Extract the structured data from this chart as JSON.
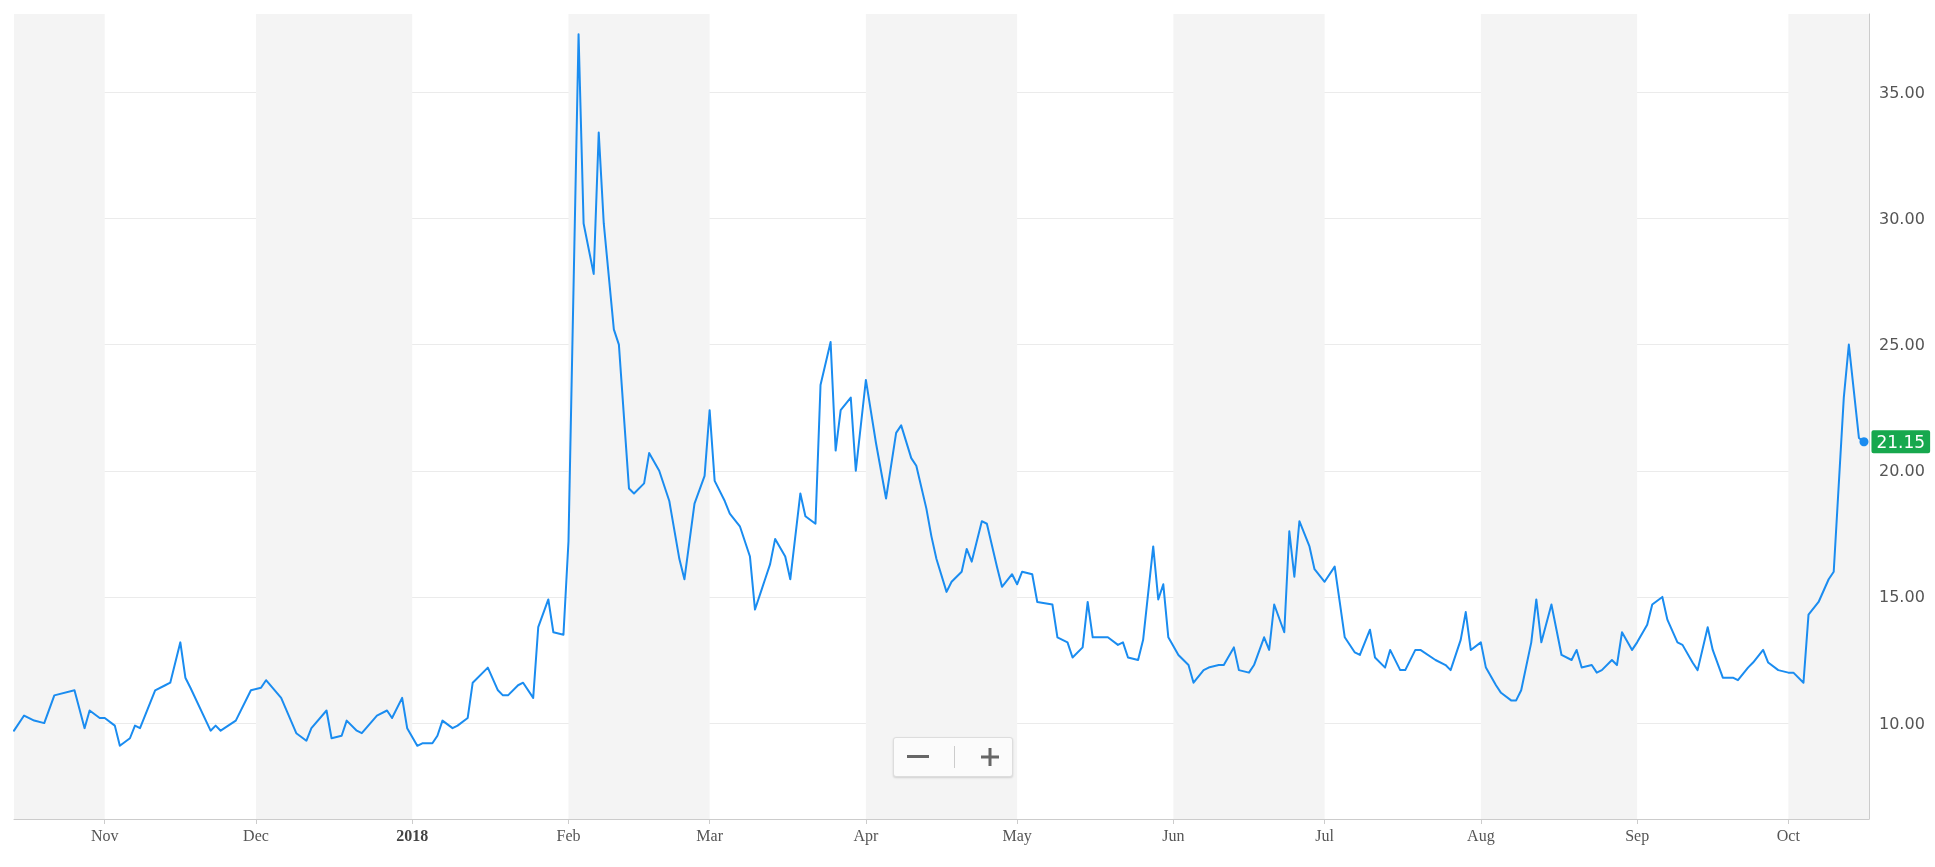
{
  "chart_data": {
    "type": "line",
    "x": [
      "2017-10-14",
      "2017-10-16",
      "2017-10-18",
      "2017-10-20",
      "2017-10-22",
      "2017-10-26",
      "2017-10-28",
      "2017-10-29",
      "2017-10-31",
      "2017-11-01",
      "2017-11-03",
      "2017-11-04",
      "2017-11-06",
      "2017-11-07",
      "2017-11-08",
      "2017-11-11",
      "2017-11-13",
      "2017-11-14",
      "2017-11-16",
      "2017-11-17",
      "2017-11-18",
      "2017-11-22",
      "2017-11-23",
      "2017-11-24",
      "2017-11-27",
      "2017-11-30",
      "2017-12-02",
      "2017-12-03",
      "2017-12-06",
      "2017-12-09",
      "2017-12-11",
      "2017-12-12",
      "2017-12-15",
      "2017-12-16",
      "2017-12-18",
      "2017-12-19",
      "2017-12-21",
      "2017-12-22",
      "2017-12-25",
      "2017-12-27",
      "2017-12-28",
      "2017-12-30",
      "2017-12-31",
      "2018-01-02",
      "2018-01-03",
      "2018-01-05",
      "2018-01-06",
      "2018-01-07",
      "2018-01-09",
      "2018-01-10",
      "2018-01-12",
      "2018-01-13",
      "2018-01-16",
      "2018-01-18",
      "2018-01-19",
      "2018-01-20",
      "2018-01-22",
      "2018-01-23",
      "2018-01-25",
      "2018-01-26",
      "2018-01-28",
      "2018-01-29",
      "2018-01-31",
      "2018-02-01",
      "2018-02-03",
      "2018-02-04",
      "2018-02-06",
      "2018-02-07",
      "2018-02-08",
      "2018-02-10",
      "2018-02-11",
      "2018-02-13",
      "2018-02-14",
      "2018-02-16",
      "2018-02-17",
      "2018-02-19",
      "2018-02-21",
      "2018-02-23",
      "2018-02-24",
      "2018-02-26",
      "2018-02-28",
      "2018-03-01",
      "2018-03-02",
      "2018-03-04",
      "2018-03-05",
      "2018-03-07",
      "2018-03-09",
      "2018-03-10",
      "2018-03-12",
      "2018-03-13",
      "2018-03-14",
      "2018-03-16",
      "2018-03-17",
      "2018-03-19",
      "2018-03-20",
      "2018-03-22",
      "2018-03-23",
      "2018-03-25",
      "2018-03-26",
      "2018-03-27",
      "2018-03-29",
      "2018-03-30",
      "2018-04-01",
      "2018-04-03",
      "2018-04-05",
      "2018-04-07",
      "2018-04-08",
      "2018-04-10",
      "2018-04-11",
      "2018-04-13",
      "2018-04-14",
      "2018-04-15",
      "2018-04-17",
      "2018-04-18",
      "2018-04-20",
      "2018-04-21",
      "2018-04-22",
      "2018-04-24",
      "2018-04-25",
      "2018-04-27",
      "2018-04-28",
      "2018-04-30",
      "2018-05-01",
      "2018-05-02",
      "2018-05-04",
      "2018-05-05",
      "2018-05-08",
      "2018-05-09",
      "2018-05-11",
      "2018-05-12",
      "2018-05-14",
      "2018-05-15",
      "2018-05-16",
      "2018-05-19",
      "2018-05-21",
      "2018-05-22",
      "2018-05-23",
      "2018-05-25",
      "2018-05-26",
      "2018-05-28",
      "2018-05-29",
      "2018-05-30",
      "2018-05-31",
      "2018-06-02",
      "2018-06-04",
      "2018-06-05",
      "2018-06-07",
      "2018-06-08",
      "2018-06-10",
      "2018-06-11",
      "2018-06-13",
      "2018-06-14",
      "2018-06-16",
      "2018-06-17",
      "2018-06-19",
      "2018-06-20",
      "2018-06-21",
      "2018-06-23",
      "2018-06-24",
      "2018-06-25",
      "2018-06-26",
      "2018-06-28",
      "2018-06-29",
      "2018-07-01",
      "2018-07-03",
      "2018-07-04",
      "2018-07-05",
      "2018-07-07",
      "2018-07-08",
      "2018-07-10",
      "2018-07-11",
      "2018-07-13",
      "2018-07-14",
      "2018-07-16",
      "2018-07-17",
      "2018-07-19",
      "2018-07-20",
      "2018-07-23",
      "2018-07-25",
      "2018-07-26",
      "2018-07-28",
      "2018-07-29",
      "2018-07-30",
      "2018-08-01",
      "2018-08-02",
      "2018-08-04",
      "2018-08-05",
      "2018-08-07",
      "2018-08-08",
      "2018-08-09",
      "2018-08-11",
      "2018-08-12",
      "2018-08-13",
      "2018-08-15",
      "2018-08-16",
      "2018-08-17",
      "2018-08-19",
      "2018-08-20",
      "2018-08-21",
      "2018-08-23",
      "2018-08-24",
      "2018-08-25",
      "2018-08-27",
      "2018-08-28",
      "2018-08-29",
      "2018-08-31",
      "2018-09-01",
      "2018-09-03",
      "2018-09-04",
      "2018-09-06",
      "2018-09-07",
      "2018-09-09",
      "2018-09-10",
      "2018-09-12",
      "2018-09-13",
      "2018-09-15",
      "2018-09-16",
      "2018-09-18",
      "2018-09-20",
      "2018-09-21",
      "2018-09-23",
      "2018-09-24",
      "2018-09-26",
      "2018-09-27",
      "2018-09-29",
      "2018-10-01",
      "2018-10-02",
      "2018-10-04",
      "2018-10-05",
      "2018-10-07",
      "2018-10-09",
      "2018-10-10",
      "2018-10-12",
      "2018-10-13",
      "2018-10-15",
      "2018-10-16"
    ],
    "series": [
      {
        "color": "#1a8cf0",
        "values": [
          9.7,
          10.3,
          10.1,
          10.0,
          11.1,
          11.3,
          9.8,
          10.5,
          10.2,
          10.2,
          9.9,
          9.1,
          9.4,
          9.9,
          9.8,
          11.3,
          11.5,
          11.6,
          13.2,
          11.8,
          11.4,
          9.7,
          9.9,
          9.7,
          10.1,
          11.3,
          11.4,
          11.7,
          11.0,
          9.6,
          9.3,
          9.8,
          10.5,
          9.4,
          9.5,
          10.1,
          9.7,
          9.6,
          10.3,
          10.5,
          10.2,
          11.0,
          9.8,
          9.1,
          9.2,
          9.2,
          9.5,
          10.1,
          9.8,
          9.9,
          10.2,
          11.6,
          12.2,
          11.3,
          11.1,
          11.1,
          11.5,
          11.6,
          11.0,
          13.8,
          14.9,
          13.6,
          13.5,
          17.2,
          37.3,
          29.8,
          27.8,
          33.4,
          29.8,
          25.6,
          25.0,
          19.3,
          19.1,
          19.5,
          20.7,
          20.0,
          18.8,
          16.5,
          15.7,
          18.7,
          19.8,
          22.4,
          19.6,
          18.8,
          18.3,
          17.8,
          16.6,
          14.5,
          15.7,
          16.3,
          17.3,
          16.6,
          15.7,
          19.1,
          18.2,
          17.9,
          23.4,
          25.1,
          20.8,
          22.4,
          22.9,
          20.0,
          23.6,
          21.1,
          18.9,
          21.5,
          21.8,
          20.5,
          20.2,
          18.5,
          17.4,
          16.5,
          15.2,
          15.6,
          16.0,
          16.9,
          16.4,
          18.0,
          17.9,
          16.2,
          15.4,
          15.9,
          15.5,
          16.0,
          15.9,
          14.8,
          14.7,
          13.4,
          13.2,
          12.6,
          13.0,
          14.8,
          13.4,
          13.4,
          13.1,
          13.2,
          12.6,
          12.5,
          13.3,
          17.0,
          14.9,
          15.5,
          13.4,
          12.7,
          12.3,
          11.6,
          12.1,
          12.2,
          12.3,
          12.3,
          13.0,
          12.1,
          12.0,
          12.3,
          13.4,
          12.9,
          14.7,
          13.6,
          17.6,
          15.8,
          18.0,
          17.0,
          16.1,
          15.6,
          16.2,
          14.8,
          13.4,
          12.8,
          12.7,
          13.7,
          12.6,
          12.2,
          12.9,
          12.1,
          12.1,
          12.9,
          12.9,
          12.5,
          12.3,
          12.1,
          13.3,
          14.4,
          12.9,
          13.2,
          12.2,
          11.5,
          11.2,
          10.9,
          10.9,
          11.3,
          13.2,
          14.9,
          13.2,
          14.7,
          13.7,
          12.7,
          12.5,
          12.9,
          12.2,
          12.3,
          12.0,
          12.1,
          12.5,
          12.3,
          13.6,
          12.9,
          13.2,
          13.9,
          14.7,
          15.0,
          14.1,
          13.2,
          13.1,
          12.4,
          12.1,
          13.8,
          12.9,
          11.8,
          11.8,
          11.7,
          12.2,
          12.4,
          12.9,
          12.4,
          12.1,
          12.0,
          12.0,
          11.6,
          14.3,
          14.8,
          15.7,
          16.0,
          22.9,
          25.0,
          21.3,
          21.15
        ]
      }
    ],
    "xlim": [
      "2017-10-14",
      "2018-10-17"
    ],
    "xticks": [
      {
        "value": "2017-11-01",
        "label": "Nov"
      },
      {
        "value": "2017-12-01",
        "label": "Dec"
      },
      {
        "value": "2018-01-01",
        "label": "2018"
      },
      {
        "value": "2018-02-01",
        "label": "Feb"
      },
      {
        "value": "2018-03-01",
        "label": "Mar"
      },
      {
        "value": "2018-04-01",
        "label": "Apr"
      },
      {
        "value": "2018-05-01",
        "label": "May"
      },
      {
        "value": "2018-06-01",
        "label": "Jun"
      },
      {
        "value": "2018-07-01",
        "label": "Jul"
      },
      {
        "value": "2018-08-01",
        "label": "Aug"
      },
      {
        "value": "2018-09-01",
        "label": "Sep"
      },
      {
        "value": "2018-10-01",
        "label": "Oct"
      }
    ],
    "ylim": [
      6.2,
      38.1
    ],
    "yticks": [
      {
        "value": 10,
        "label": "10.00"
      },
      {
        "value": 15,
        "label": "15.00"
      },
      {
        "value": 20,
        "label": "20.00"
      },
      {
        "value": 25,
        "label": "25.00"
      },
      {
        "value": 30,
        "label": "30.00"
      },
      {
        "value": 35,
        "label": "35.00"
      }
    ],
    "grid": "y",
    "marker": "none",
    "line_style": "solid",
    "bands": [
      {
        "axis": "x",
        "from": "2017-10-14",
        "to": "2017-11-01",
        "color": "#f4f4f4"
      },
      {
        "axis": "x",
        "from": "2017-12-01",
        "to": "2018-01-01",
        "color": "#f4f4f4"
      },
      {
        "axis": "x",
        "from": "2018-02-01",
        "to": "2018-03-01",
        "color": "#f4f4f4"
      },
      {
        "axis": "x",
        "from": "2018-04-01",
        "to": "2018-05-01",
        "color": "#f4f4f4"
      },
      {
        "axis": "x",
        "from": "2018-06-01",
        "to": "2018-07-01",
        "color": "#f4f4f4"
      },
      {
        "axis": "x",
        "from": "2018-08-01",
        "to": "2018-09-01",
        "color": "#f4f4f4"
      },
      {
        "axis": "x",
        "from": "2018-10-01",
        "to": "2018-10-17",
        "color": "#f4f4f4"
      }
    ],
    "annotations": [
      {
        "text": "21.15",
        "x": "2018-10-16",
        "y": 21.15
      }
    ]
  }
}
